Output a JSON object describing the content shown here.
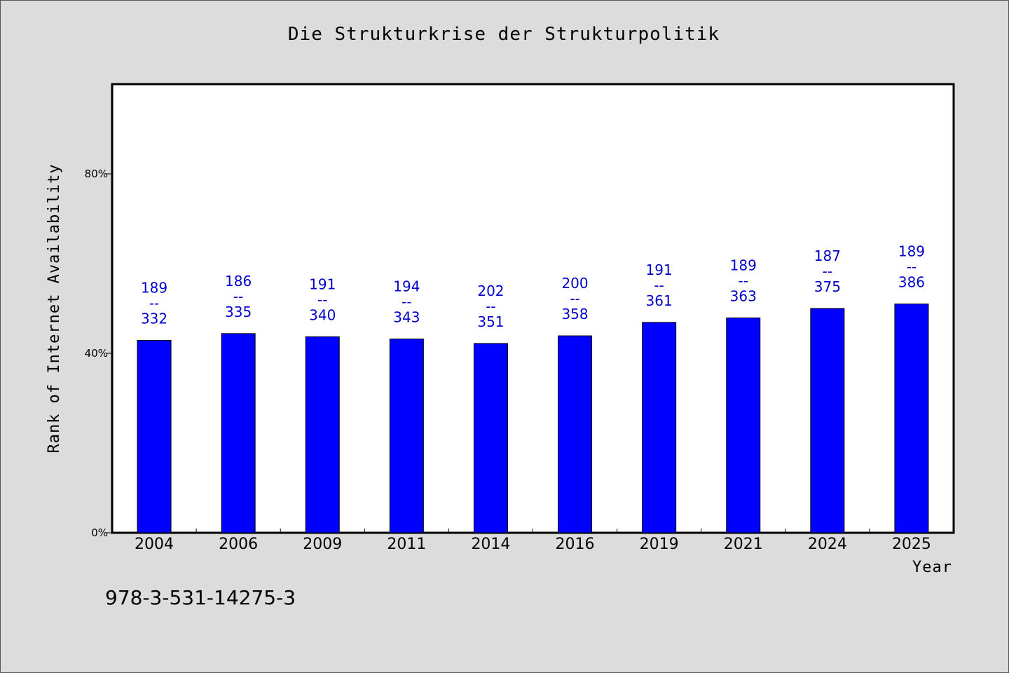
{
  "title": "Die Strukturkrise der Strukturpolitik",
  "footer": "978-3-531-14275-3",
  "colors": {
    "background": "#dcdcdc",
    "plot_background": "#ffffff",
    "bar": "#0000ff",
    "label": "#0000cc"
  },
  "chart_data": {
    "type": "bar",
    "title": "Die Strukturkrise der Strukturpolitik",
    "xlabel": "Year",
    "ylabel": "Rank of Internet Availability",
    "categories": [
      "2004",
      "2006",
      "2009",
      "2011",
      "2014",
      "2016",
      "2019",
      "2021",
      "2024",
      "2025"
    ],
    "values": [
      42.9,
      44.4,
      43.7,
      43.2,
      42.2,
      43.9,
      46.9,
      47.9,
      50.0,
      51.0
    ],
    "labels": [
      {
        "top": "189",
        "sep": "--",
        "bottom": "332"
      },
      {
        "top": "186",
        "sep": "--",
        "bottom": "335"
      },
      {
        "top": "191",
        "sep": "--",
        "bottom": "340"
      },
      {
        "top": "194",
        "sep": "--",
        "bottom": "343"
      },
      {
        "top": "202",
        "sep": "--",
        "bottom": "351"
      },
      {
        "top": "200",
        "sep": "--",
        "bottom": "358"
      },
      {
        "top": "191",
        "sep": "--",
        "bottom": "361"
      },
      {
        "top": "189",
        "sep": "--",
        "bottom": "363"
      },
      {
        "top": "187",
        "sep": "--",
        "bottom": "375"
      },
      {
        "top": "189",
        "sep": "--",
        "bottom": "386"
      }
    ],
    "yticks": [
      {
        "value": 0,
        "label": "0%"
      },
      {
        "value": 40,
        "label": "40%"
      },
      {
        "value": 80,
        "label": "80%"
      }
    ],
    "ylim": [
      0,
      100
    ],
    "grid": false,
    "legend": "none"
  }
}
